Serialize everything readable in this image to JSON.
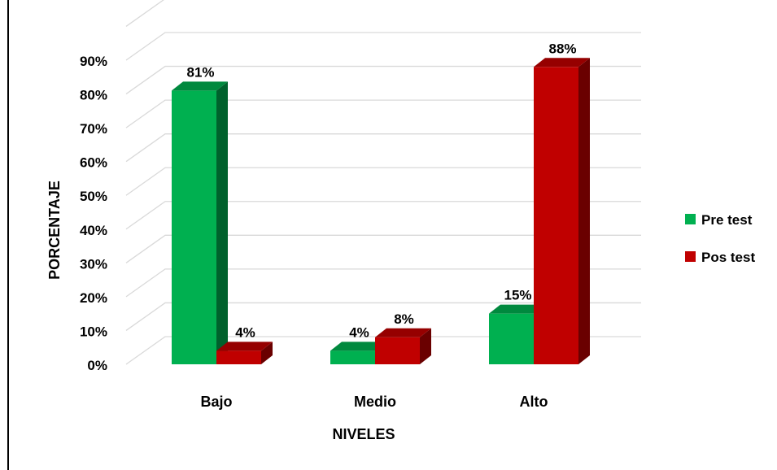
{
  "chart_data": {
    "type": "bar",
    "title": "",
    "xlabel": "NIVELES",
    "ylabel": "PORCENTAJE",
    "categories": [
      "Bajo",
      "Medio",
      "Alto"
    ],
    "series": [
      {
        "name": "Pre test",
        "values": [
          81,
          4,
          15
        ],
        "labels": [
          "81%",
          "4%",
          "15%"
        ],
        "color": "#00b050"
      },
      {
        "name": "Pos test",
        "values": [
          4,
          8,
          88
        ],
        "labels": [
          "4%",
          "8%",
          "88%"
        ],
        "color": "#c00000"
      }
    ],
    "ylim": [
      0,
      90
    ],
    "yticks": [
      "0%",
      "10%",
      "20%",
      "30%",
      "40%",
      "50%",
      "60%",
      "70%",
      "80%",
      "90%"
    ],
    "grid": true,
    "legend_position": "right",
    "style": "3d-clustered-column"
  }
}
